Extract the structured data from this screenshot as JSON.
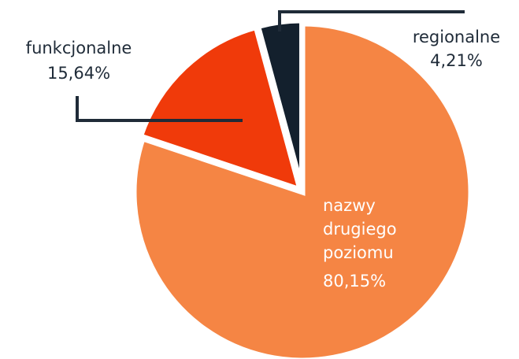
{
  "chart_data": {
    "type": "pie",
    "categories": [
      "nazwy drugiego poziomu",
      "funkcjonalne",
      "regionalne"
    ],
    "values": [
      80.15,
      15.64,
      4.21
    ],
    "value_labels": [
      "80,15%",
      "15,64%",
      "4,21%"
    ],
    "colors": [
      "#f58544",
      "#f03a0a",
      "#13202d"
    ]
  }
}
